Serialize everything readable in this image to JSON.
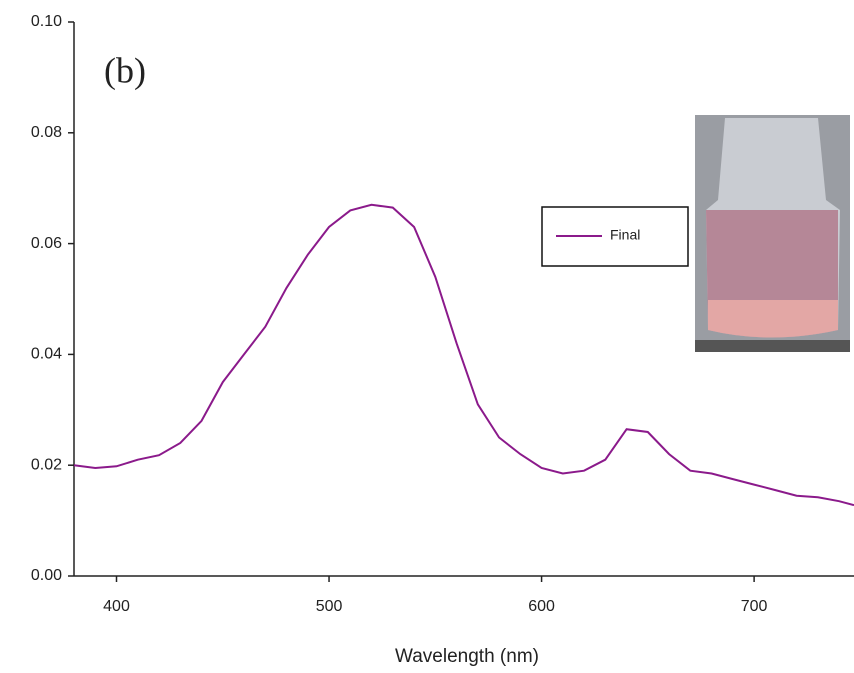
{
  "chart_data": {
    "type": "line",
    "annotation": "(b)",
    "xlabel": "Wavelength (nm)",
    "x": [
      380,
      390,
      400,
      410,
      420,
      430,
      440,
      450,
      460,
      470,
      480,
      490,
      500,
      510,
      520,
      530,
      540,
      550,
      560,
      570,
      580,
      590,
      600,
      610,
      620,
      630,
      640,
      650,
      660,
      670,
      680,
      690,
      700,
      710,
      720,
      730,
      740,
      747
    ],
    "series": [
      {
        "name": "Final",
        "color": "#8b1a8b",
        "values": [
          0.02,
          0.0195,
          0.0198,
          0.021,
          0.0218,
          0.024,
          0.028,
          0.035,
          0.04,
          0.045,
          0.052,
          0.058,
          0.063,
          0.066,
          0.067,
          0.0665,
          0.063,
          0.054,
          0.042,
          0.031,
          0.025,
          0.022,
          0.0195,
          0.0185,
          0.019,
          0.021,
          0.0265,
          0.026,
          0.022,
          0.019,
          0.0185,
          0.0175,
          0.0165,
          0.0155,
          0.0145,
          0.0142,
          0.0135,
          0.0128
        ]
      }
    ],
    "xlim": [
      380,
      747
    ],
    "xticks": [
      400,
      500,
      600,
      700
    ],
    "ylim": [
      0,
      0.1
    ],
    "yticks": [
      {
        "value": 0,
        "label": "0.00"
      },
      0.02,
      0.04,
      0.06,
      0.08,
      {
        "value": 0.1,
        "label": "0.10"
      }
    ],
    "grid": false
  }
}
